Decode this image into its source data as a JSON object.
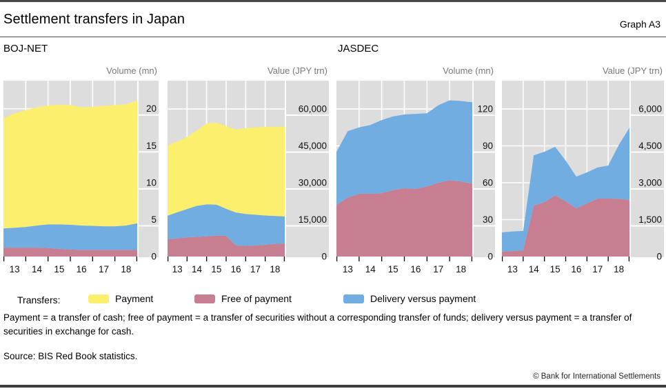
{
  "header": {
    "title": "Settlement transfers in Japan",
    "graph_label": "Graph A3"
  },
  "panel_titles": {
    "left": "BOJ-NET",
    "right": "JASDEC"
  },
  "colors": {
    "payment": "#fcef6e",
    "free_of_payment": "#c67e90",
    "delivery_versus_payment": "#71ade1",
    "plot_bg": "#dddddd",
    "grid": "#ffffff",
    "tick_text": "#111111",
    "unit_text": "#777777",
    "frame_bar": "#474747"
  },
  "legend": {
    "label": "Transfers:",
    "items": [
      {
        "name": "Payment",
        "color": "#fcef6e"
      },
      {
        "name": "Free of payment",
        "color": "#c67e90"
      },
      {
        "name": "Delivery versus payment",
        "color": "#71ade1"
      }
    ]
  },
  "footnote": "Payment = a transfer of cash; free of payment = a transfer of securities without a corresponding transfer of funds; delivery versus payment = a transfer of securities in exchange for cash.",
  "source": "Source: BIS Red Book statistics.",
  "copyright": "© Bank for International Settlements",
  "chart_data": [
    {
      "type": "area",
      "stacked": true,
      "group": "BOJ-NET",
      "unit_label": "Volume (mn)",
      "x": [
        13,
        13.5,
        14,
        14.5,
        15,
        15.5,
        16,
        16.5,
        17,
        17.5,
        18,
        18.5,
        19
      ],
      "x_tick_years": [
        13,
        14,
        15,
        16,
        17,
        18,
        19
      ],
      "x_tick_labels": [
        "13",
        "14",
        "15",
        "16",
        "17",
        "18"
      ],
      "series": [
        {
          "name": "Free of payment",
          "color": "#c67e90",
          "values": [
            1.2,
            1.2,
            1.2,
            1.2,
            1.15,
            1.05,
            0.95,
            0.9,
            0.9,
            0.9,
            0.9,
            0.9,
            0.9
          ]
        },
        {
          "name": "Delivery versus payment",
          "color": "#71ade1",
          "values": [
            2.6,
            2.7,
            2.8,
            3.0,
            3.2,
            3.3,
            3.35,
            3.3,
            3.25,
            3.2,
            3.2,
            3.3,
            3.6
          ]
        },
        {
          "name": "Payment",
          "color": "#fcef6e",
          "values": [
            14.9,
            15.5,
            15.8,
            16.0,
            16.1,
            16.2,
            16.2,
            16.0,
            16.1,
            16.3,
            16.4,
            16.4,
            16.6
          ]
        }
      ],
      "y_ticks": [
        0,
        5,
        10,
        15,
        20
      ],
      "y_tick_labels": [
        "0",
        "5",
        "10",
        "15",
        "20"
      ],
      "ylim": [
        0,
        23.8
      ],
      "grid": true,
      "legend_position": "bottom"
    },
    {
      "type": "area",
      "stacked": true,
      "group": "BOJ-NET",
      "unit_label": "Value (JPY trn)",
      "x": [
        13,
        13.5,
        14,
        14.5,
        15,
        15.5,
        16,
        16.5,
        17,
        17.5,
        18,
        18.5,
        19
      ],
      "x_tick_years": [
        13,
        14,
        15,
        16,
        17,
        18,
        19
      ],
      "x_tick_labels": [
        "13",
        "14",
        "15",
        "16",
        "17",
        "18"
      ],
      "series": [
        {
          "name": "Free of payment",
          "color": "#c67e90",
          "values": [
            7000,
            7400,
            7800,
            8000,
            8200,
            8500,
            8400,
            4500,
            4300,
            4500,
            4800,
            5100,
            5300
          ]
        },
        {
          "name": "Delivery versus payment",
          "color": "#71ade1",
          "values": [
            9600,
            10600,
            11500,
            12600,
            13000,
            12600,
            11000,
            13400,
            13000,
            12500,
            11900,
            11400,
            11000
          ]
        },
        {
          "name": "Payment",
          "color": "#fcef6e",
          "values": [
            28600,
            28800,
            29300,
            30700,
            32900,
            33300,
            33600,
            33700,
            34900,
            35500,
            36000,
            36300,
            36500
          ]
        }
      ],
      "y_ticks": [
        0,
        15000,
        30000,
        45000,
        60000
      ],
      "y_tick_labels": [
        "0",
        "15,000",
        "30,000",
        "45,000",
        "60,000"
      ],
      "ylim": [
        0,
        71500
      ],
      "grid": true,
      "legend_position": "bottom"
    },
    {
      "type": "area",
      "stacked": true,
      "group": "JASDEC",
      "unit_label": "Volume (mn)",
      "x": [
        13,
        13.5,
        14,
        14.5,
        15,
        15.5,
        16,
        16.5,
        17,
        17.5,
        18,
        18.5,
        19
      ],
      "x_tick_years": [
        13,
        14,
        15,
        16,
        17,
        18,
        19
      ],
      "x_tick_labels": [
        "13",
        "14",
        "15",
        "16",
        "17",
        "18"
      ],
      "series": [
        {
          "name": "Free of payment",
          "color": "#c67e90",
          "values": [
            42,
            48,
            51,
            51,
            51.5,
            54,
            55.5,
            55,
            57,
            60,
            62,
            61,
            59.5
          ]
        },
        {
          "name": "Delivery versus payment",
          "color": "#71ade1",
          "values": [
            43,
            54,
            54,
            56,
            59.5,
            60,
            60,
            61,
            59.5,
            63,
            65,
            65.5,
            66
          ]
        },
        {
          "name": "Payment",
          "color": "#fcef6e",
          "values": [
            0,
            0,
            0,
            0,
            0,
            0,
            0,
            0,
            0,
            0,
            0,
            0,
            0
          ]
        }
      ],
      "y_ticks": [
        0,
        30,
        60,
        90,
        120
      ],
      "y_tick_labels": [
        "0",
        "30",
        "60",
        "90",
        "120"
      ],
      "ylim": [
        0,
        143
      ],
      "grid": true,
      "legend_position": "bottom"
    },
    {
      "type": "area",
      "stacked": true,
      "group": "JASDEC",
      "unit_label": "Value (JPY trn)",
      "x": [
        13,
        13.5,
        14,
        14.5,
        15,
        15.5,
        16,
        16.5,
        17,
        17.5,
        18,
        18.5,
        19
      ],
      "x_tick_years": [
        13,
        14,
        15,
        16,
        17,
        18,
        19
      ],
      "x_tick_labels": [
        "13",
        "14",
        "15",
        "16",
        "17",
        "18"
      ],
      "series": [
        {
          "name": "Free of payment",
          "color": "#c67e90",
          "values": [
            200,
            220,
            250,
            2070,
            2210,
            2490,
            2240,
            1960,
            2160,
            2355,
            2355,
            2350,
            2300
          ]
        },
        {
          "name": "Delivery versus payment",
          "color": "#71ade1",
          "values": [
            780,
            800,
            790,
            2050,
            2050,
            1970,
            1660,
            1290,
            1260,
            1265,
            1345,
            2190,
            2940
          ]
        },
        {
          "name": "Payment",
          "color": "#fcef6e",
          "values": [
            0,
            0,
            0,
            0,
            0,
            0,
            0,
            0,
            0,
            0,
            0,
            0,
            0
          ]
        }
      ],
      "y_ticks": [
        0,
        1500,
        3000,
        4500,
        6000
      ],
      "y_tick_labels": [
        "0",
        "1,500",
        "3,000",
        "4,500",
        "6,000"
      ],
      "ylim": [
        0,
        7150
      ],
      "grid": true,
      "legend_position": "bottom"
    }
  ]
}
